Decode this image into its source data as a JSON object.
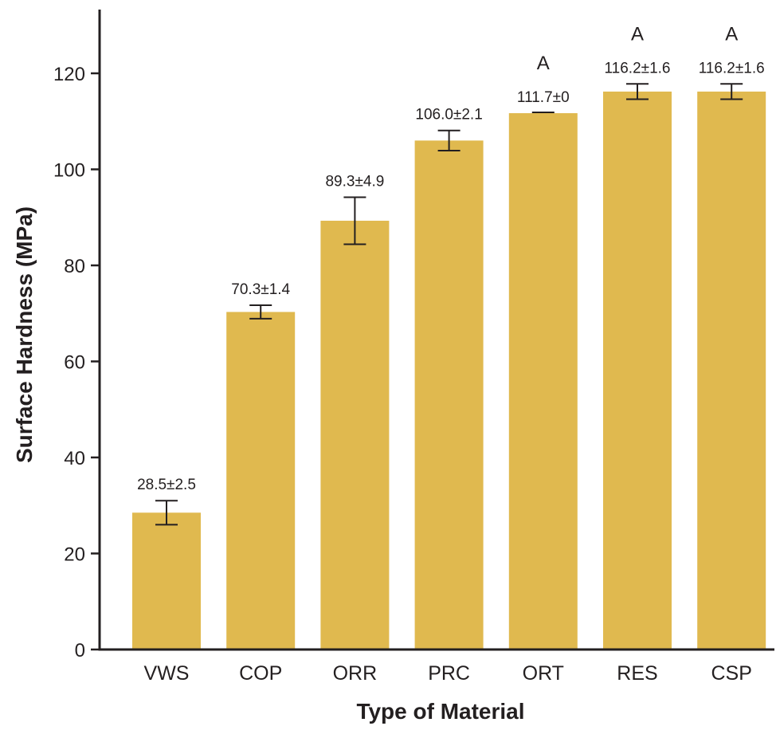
{
  "colors": {
    "bar": "#e0b94f",
    "axis": "#231f20",
    "text": "#231f20",
    "background": "#ffffff"
  },
  "chart_data": {
    "type": "bar",
    "title": "",
    "xlabel": "Type of Material",
    "ylabel": "Surface Hardness (MPa)",
    "ylim": [
      0,
      133
    ],
    "yticks": [
      0,
      20,
      40,
      60,
      80,
      100,
      120
    ],
    "ytick_labels": [
      "0",
      "20",
      "40",
      "60",
      "80",
      "100",
      "120"
    ],
    "grid": false,
    "legend": "none",
    "categories": [
      "VWS",
      "COP",
      "ORR",
      "PRC",
      "ORT",
      "RES",
      "CSP"
    ],
    "values": [
      28.5,
      70.3,
      89.3,
      106.0,
      111.7,
      116.2,
      116.2
    ],
    "errors": [
      2.5,
      1.4,
      4.9,
      2.1,
      0,
      1.6,
      1.6
    ],
    "data_labels": [
      "28.5±2.5",
      "70.3±1.4",
      "89.3±4.9",
      "106.0±2.1",
      "111.7±0",
      "116.2±1.6",
      "116.2±1.6"
    ],
    "group_letters": [
      "",
      "",
      "",
      "",
      "A",
      "A",
      "A"
    ]
  }
}
